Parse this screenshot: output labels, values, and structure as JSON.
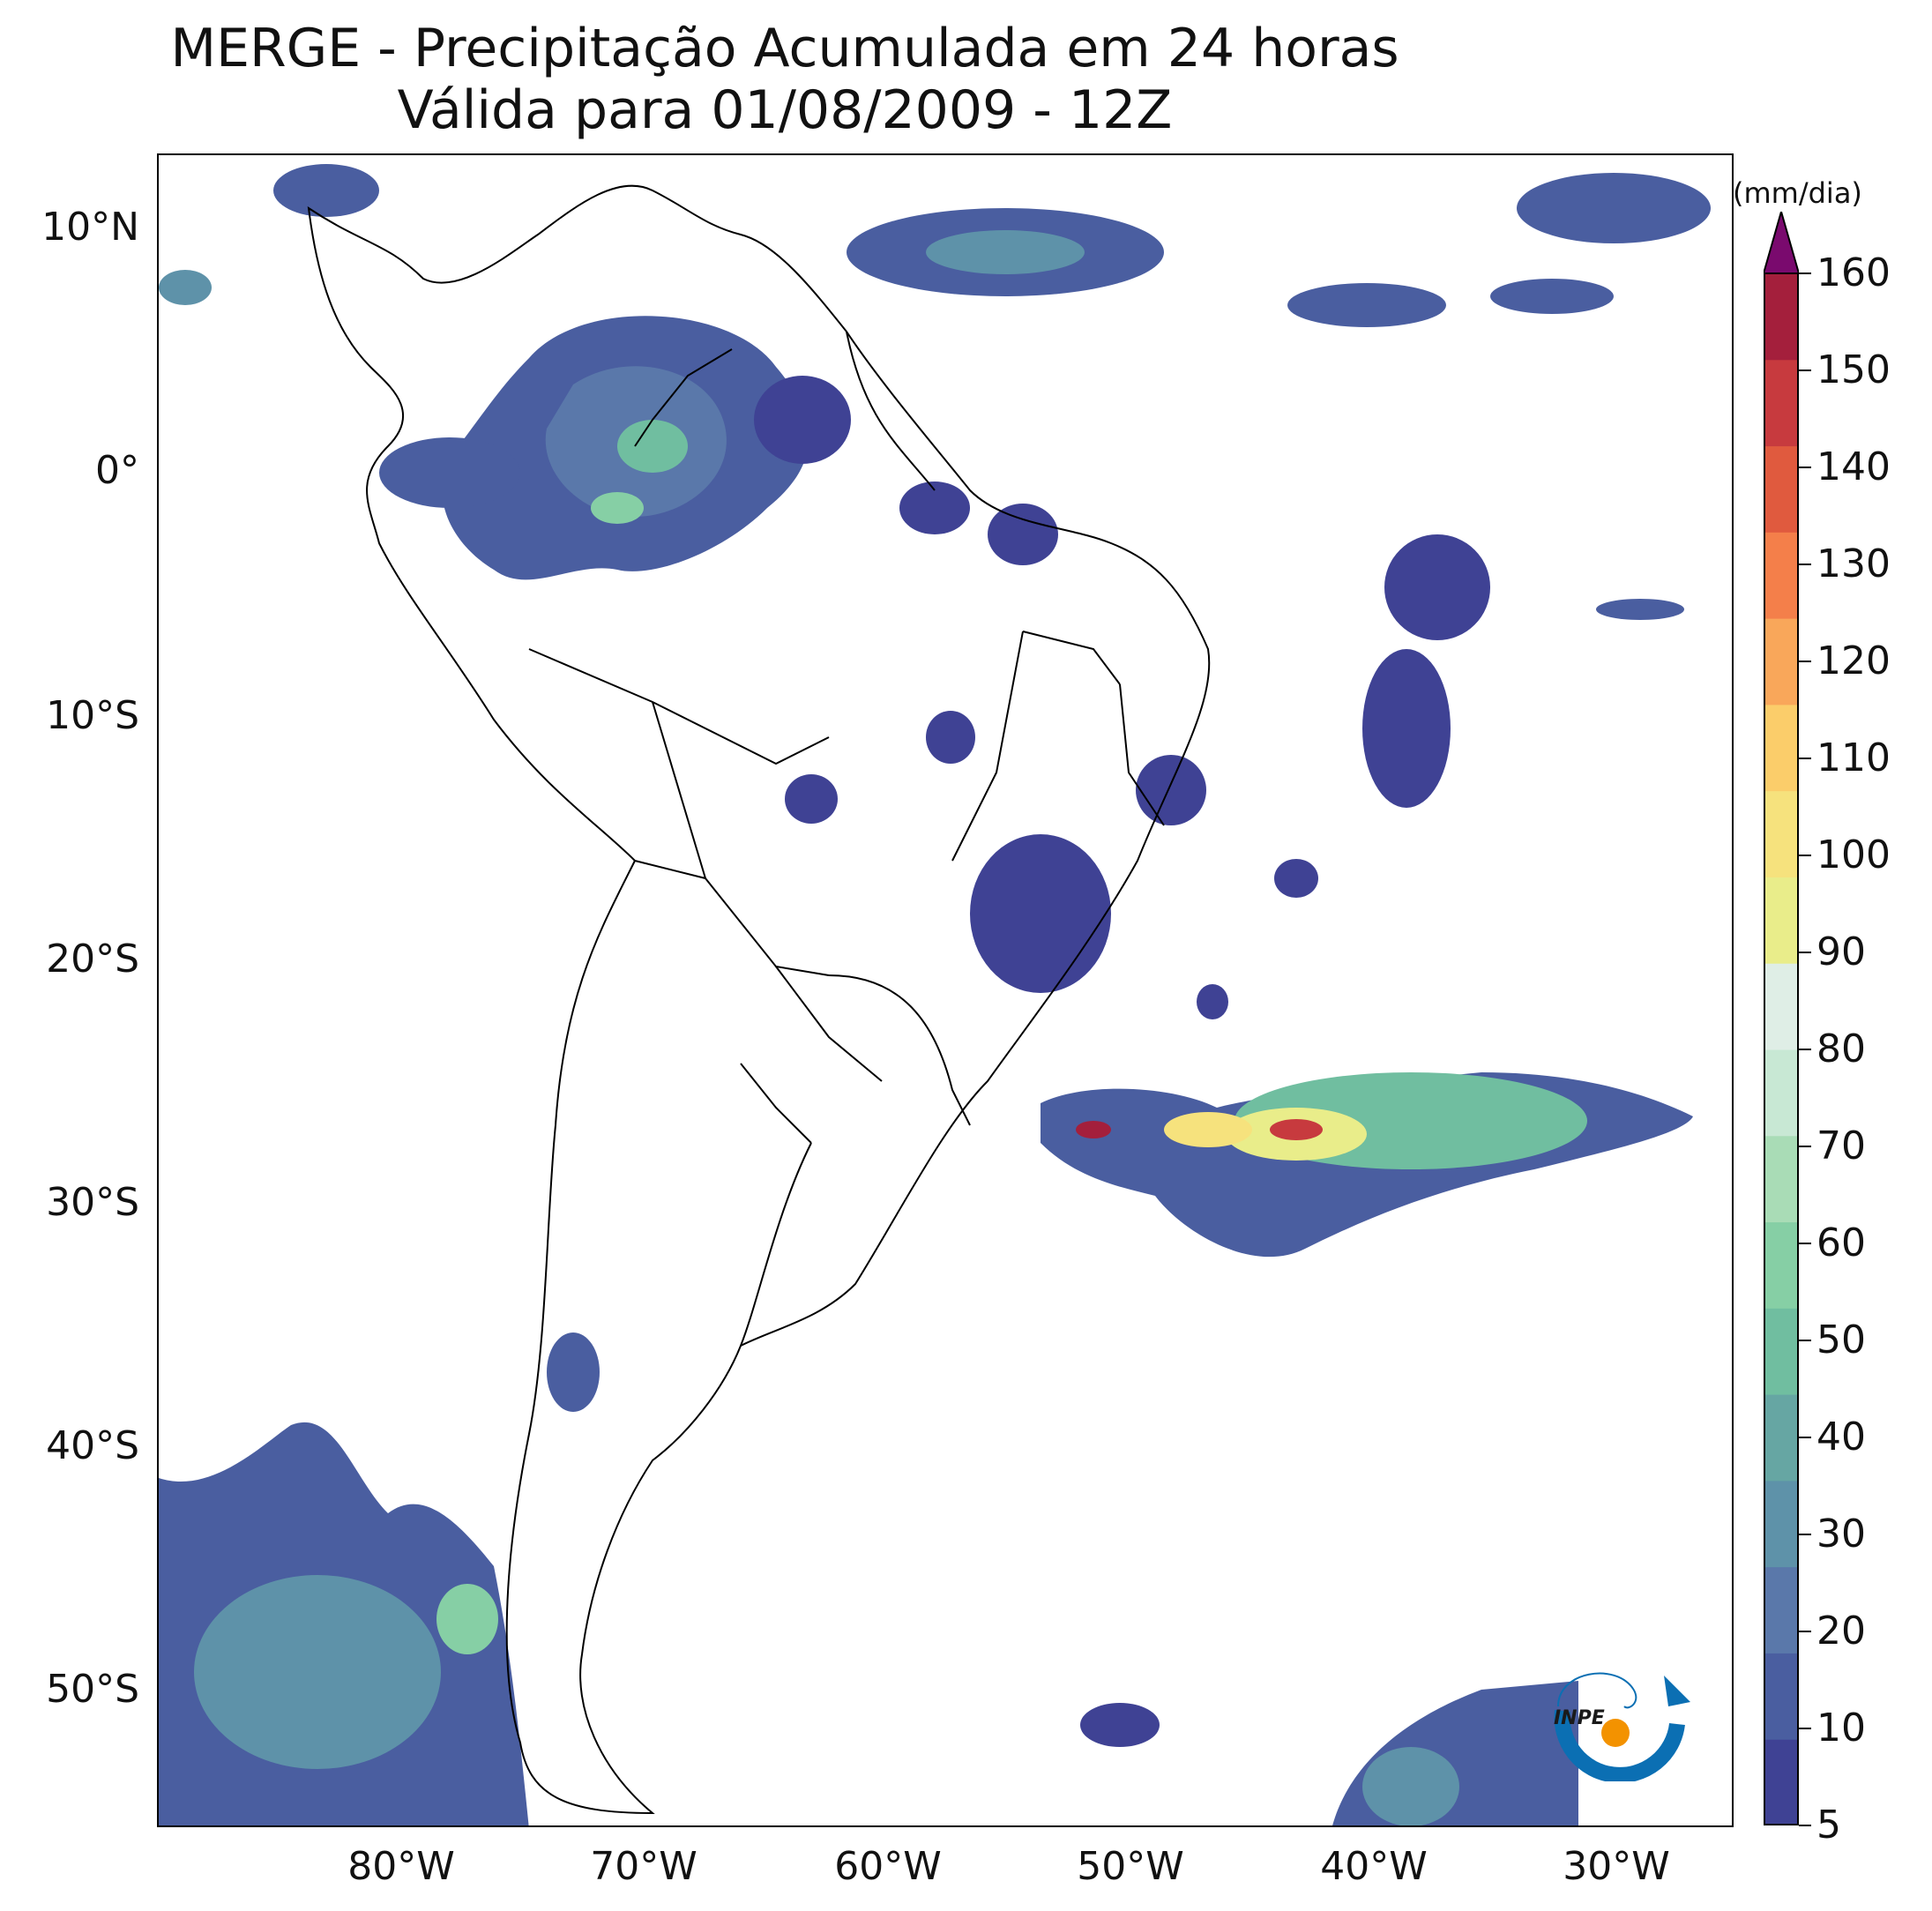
{
  "title": {
    "line1": "MERGE - Precipitação Acumulada em 24 horas",
    "line2": "Válida para 01/08/2009 - 12Z"
  },
  "map": {
    "lat_ticks": [
      "10°N",
      "0°",
      "10°S",
      "20°S",
      "30°S",
      "40°S",
      "50°S"
    ],
    "lon_ticks": [
      "80°W",
      "70°W",
      "60°W",
      "50°W",
      "40°W",
      "30°W"
    ],
    "extent": {
      "lon_min": -90,
      "lon_max": -25,
      "lat_min": -56,
      "lat_max": 13
    }
  },
  "colorbar": {
    "unit": "(mm/dia)",
    "tick_labels": [
      "5",
      "10",
      "20",
      "30",
      "40",
      "50",
      "60",
      "70",
      "80",
      "90",
      "100",
      "110",
      "120",
      "130",
      "140",
      "150",
      "160"
    ],
    "colors": [
      "#3f4294",
      "#4a5ea0",
      "#5a78aa",
      "#5e92a9",
      "#66a6a3",
      "#70bea0",
      "#86cfa5",
      "#a9dcb6",
      "#c8e8d4",
      "#dfeee6",
      "#e9ed8a",
      "#f6e27d",
      "#fbcd6a",
      "#f9a75a",
      "#f47f4a",
      "#e05a3e",
      "#c73a3e",
      "#a41f3c",
      "#7a0a6e"
    ],
    "max_arrow_color": "#7a0a6e"
  },
  "logo": {
    "text": "INPE",
    "accent_color": "#0b6fb3",
    "dot_color": "#f39200"
  }
}
